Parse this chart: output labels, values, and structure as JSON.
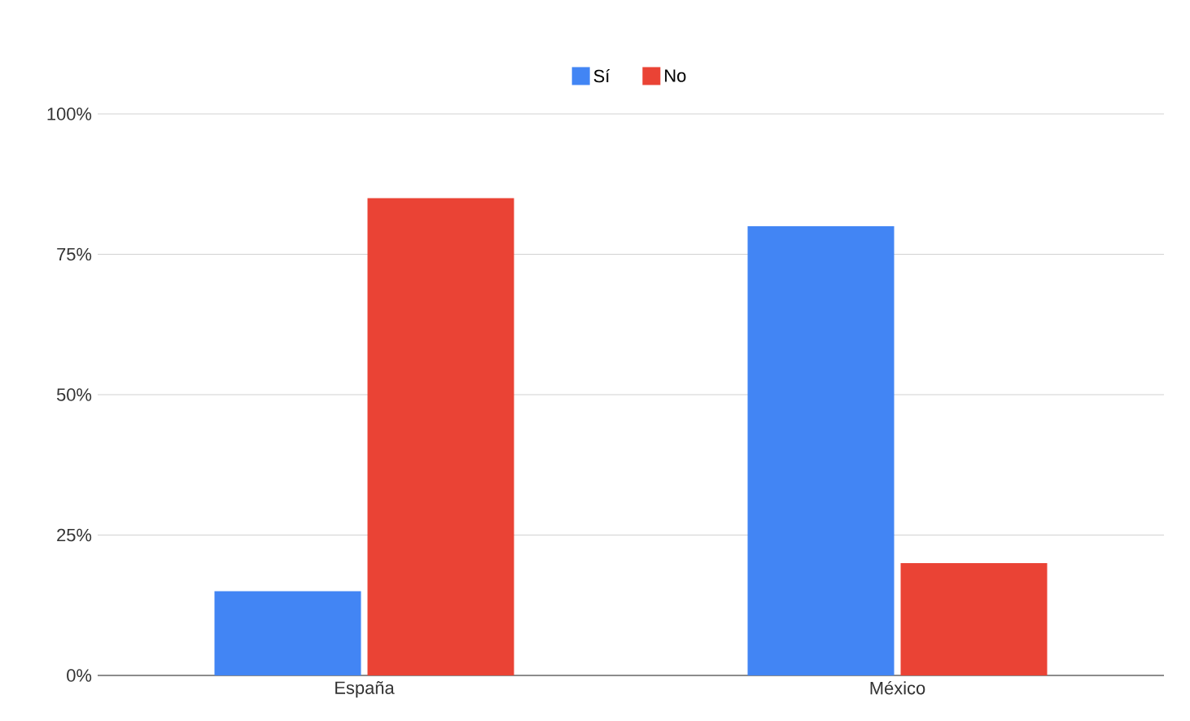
{
  "chart_data": {
    "type": "bar",
    "categories": [
      "España",
      "México"
    ],
    "series": [
      {
        "name": "Sí",
        "color": "#4285f4",
        "values": [
          15,
          80
        ]
      },
      {
        "name": "No",
        "color": "#ea4335",
        "values": [
          85,
          20
        ]
      }
    ],
    "ylim": [
      0,
      100
    ],
    "yticks": [
      {
        "value": 0,
        "label": "0%"
      },
      {
        "value": 25,
        "label": "25%"
      },
      {
        "value": 50,
        "label": "50%"
      },
      {
        "value": 75,
        "label": "75%"
      },
      {
        "value": 100,
        "label": "100%"
      }
    ],
    "grid": "y",
    "legend": "top"
  }
}
